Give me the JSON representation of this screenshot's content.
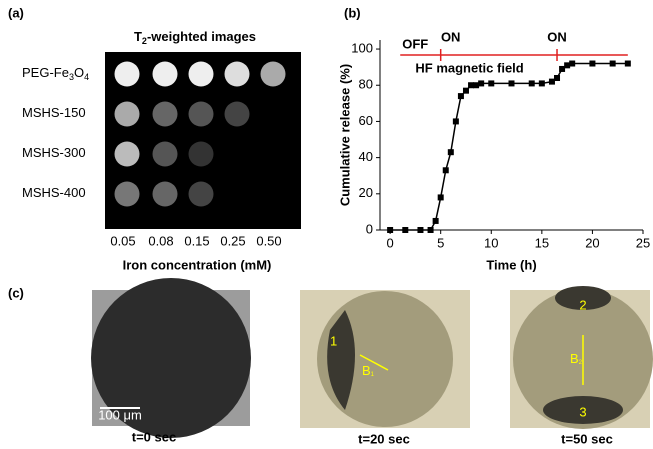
{
  "panel_a": {
    "label": "(a)",
    "title": [
      "T",
      "2",
      "-weighted images"
    ],
    "rows": [
      [
        "PEG-Fe",
        "3",
        "O",
        "4"
      ],
      [
        "MSHS-150"
      ],
      [
        "MSHS-300"
      ],
      [
        "MSHS-400"
      ]
    ],
    "columns": [
      "0.05",
      "0.08",
      "0.15",
      "0.25",
      "0.50"
    ],
    "xlabel": "Iron concentration (mM)"
  },
  "chart_data": {
    "type": "line",
    "label": "(b)",
    "x": [
      0,
      1.5,
      3,
      4,
      4.5,
      5,
      5.5,
      6,
      6.5,
      7,
      7.5,
      8,
      8.5,
      9,
      10,
      12,
      14,
      15,
      16,
      16.5,
      17,
      17.5,
      18,
      20,
      22,
      23.5
    ],
    "series": [
      {
        "color": "#000000",
        "values": [
          0,
          0,
          0,
          0,
          5,
          18,
          33,
          43,
          60,
          74,
          77,
          80,
          80,
          81,
          81,
          81,
          81,
          81,
          82,
          84,
          89,
          91,
          92,
          92,
          92,
          92
        ]
      }
    ],
    "xlim": [
      -1,
      25
    ],
    "xticks": [
      0,
      5,
      10,
      15,
      20,
      25
    ],
    "ylim": [
      0,
      105
    ],
    "yticks": [
      0,
      20,
      40,
      60,
      80,
      100
    ],
    "xlabel": "Time (h)",
    "ylabel": "Cumulative  release (%)",
    "annotations": [
      "OFF",
      "ON",
      "ON",
      "HF magnetic field"
    ],
    "switch_times": [
      5,
      16.5
    ],
    "field_color": "#e02020"
  },
  "panel_c": {
    "label": "(c)",
    "scale_bar": "100 μm",
    "captions": [
      "t=0 sec",
      "t=20 sec",
      "t=50 sec"
    ],
    "markers": [
      "1",
      "2",
      "3"
    ],
    "fields": [
      [
        "B",
        "1"
      ],
      [
        "B",
        "2"
      ]
    ]
  }
}
